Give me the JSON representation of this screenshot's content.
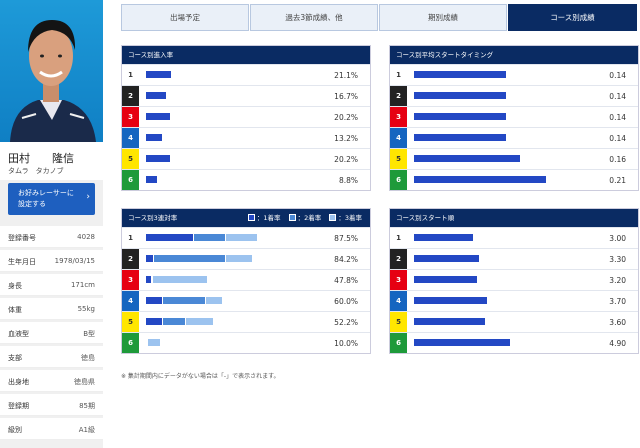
{
  "racer": {
    "name": "田村　　隆信",
    "kana": "タムラ　タカノブ",
    "fav_button": [
      "お好みレーサーに",
      "設定する"
    ],
    "profile": [
      {
        "k": "登録番号",
        "v": "4028"
      },
      {
        "k": "生年月日",
        "v": "1978/03/15"
      },
      {
        "k": "身長",
        "v": "171cm"
      },
      {
        "k": "体重",
        "v": "55kg"
      },
      {
        "k": "血液型",
        "v": "B型"
      },
      {
        "k": "支部",
        "v": "徳島"
      },
      {
        "k": "出身地",
        "v": "徳島県"
      },
      {
        "k": "登録期",
        "v": "85期"
      },
      {
        "k": "級別",
        "v": "A1級"
      }
    ]
  },
  "tabs": [
    "出場予定",
    "過去3節成績、他",
    "期別成績",
    "コース別成績"
  ],
  "active_tab": 3,
  "lane_colors": {
    "1": [
      "#ffffff",
      "#333333"
    ],
    "2": [
      "#222222",
      "#ffffff"
    ],
    "3": [
      "#e60012",
      "#ffffff"
    ],
    "4": [
      "#1565c0",
      "#ffffff"
    ],
    "5": [
      "#ffe600",
      "#333333"
    ],
    "6": [
      "#1e9a3a",
      "#ffffff"
    ]
  },
  "colors": {
    "first": "#2348c4",
    "second": "#4a88d6",
    "third": "#9cc3ef",
    "header": "#0a2b63"
  },
  "panels": {
    "entry_rate": {
      "title": "コース別進入率",
      "lanes": [
        "1",
        "2",
        "3",
        "4",
        "5",
        "6"
      ],
      "values": [
        "21.1%",
        "16.7%",
        "20.2%",
        "13.2%",
        "20.2%",
        "8.8%"
      ],
      "nums": [
        21.1,
        16.7,
        20.2,
        13.2,
        20.2,
        8.8
      ],
      "max": 100
    },
    "start_timing": {
      "title": "コース別平均スタートタイミング",
      "lanes": [
        "1",
        "2",
        "3",
        "4",
        "5",
        "6"
      ],
      "values": [
        "0.14",
        "0.14",
        "0.14",
        "0.14",
        "0.16",
        "0.21"
      ],
      "nums": [
        0.14,
        0.14,
        0.14,
        0.14,
        0.16,
        0.21
      ],
      "max": 0.2
    },
    "top3_rate": {
      "title": "コース別3連対率",
      "legend": [
        "：1着率",
        "：2着率",
        "：3着率"
      ],
      "lanes": [
        "1",
        "2",
        "3",
        "4",
        "5",
        "6"
      ],
      "values": [
        "87.5%",
        "84.2%",
        "47.8%",
        "60.0%",
        "52.2%",
        "10.0%"
      ],
      "breakdown": [
        [
          37.5,
          25,
          25
        ],
        [
          5.3,
          57.9,
          21.0
        ],
        [
          4.3,
          0,
          43.5
        ],
        [
          13.3,
          33.3,
          13.4
        ],
        [
          13.0,
          17.4,
          21.8
        ],
        [
          0,
          0,
          10.0
        ]
      ],
      "max": 100
    },
    "start_rank": {
      "title": "コース別スタート順",
      "lanes": [
        "1",
        "2",
        "3",
        "4",
        "5",
        "6"
      ],
      "values": [
        "3.00",
        "3.30",
        "3.20",
        "3.70",
        "3.60",
        "4.90"
      ],
      "nums": [
        3.0,
        3.3,
        3.2,
        3.7,
        3.6,
        4.9
      ],
      "max": 6
    }
  },
  "note": "※ 集計期間内にデータがない場合は「-」で表示されます。"
}
